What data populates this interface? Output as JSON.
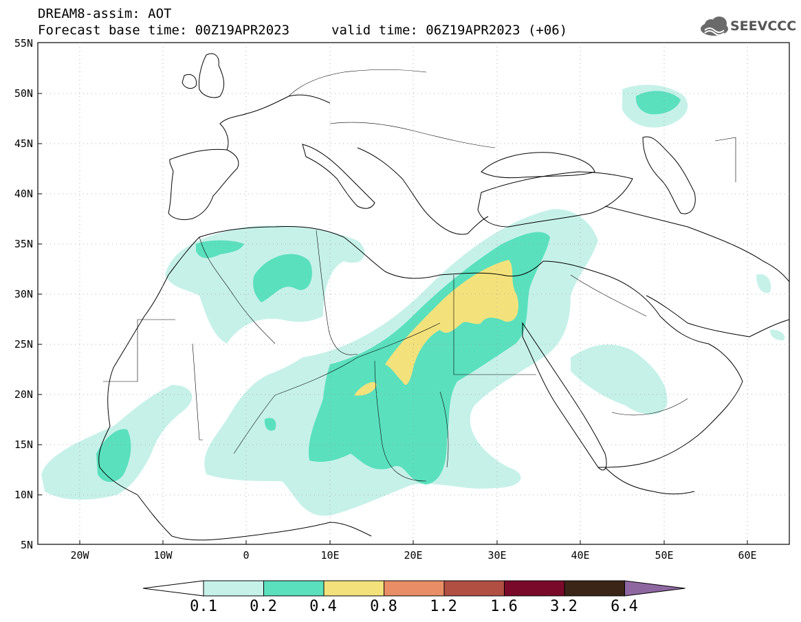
{
  "header": {
    "title_line1": "DREAM8-assim: AOT",
    "title_line2": "Forecast base time: 00Z19APR2023",
    "valid_time": "valid time: 06Z19APR2023 (+06)",
    "logo_text": "SEEVCCC",
    "logo_icon": "cloud-logo-icon"
  },
  "axes": {
    "lat_labels": [
      "55N",
      "50N",
      "45N",
      "40N",
      "35N",
      "30N",
      "25N",
      "20N",
      "15N",
      "10N",
      "5N"
    ],
    "lon_labels": [
      "20W",
      "10W",
      "0",
      "10E",
      "20E",
      "30E",
      "40E",
      "50E",
      "60E"
    ],
    "lat_range": [
      5,
      55
    ],
    "lon_range": [
      -25,
      65
    ]
  },
  "colorbar": {
    "levels": [
      "0.1",
      "0.2",
      "0.4",
      "0.8",
      "1.2",
      "1.6",
      "3.2",
      "6.4"
    ],
    "colors": [
      "#c6f1e9",
      "#5ae0bd",
      "#f3e27c",
      "#e98d66",
      "#b04f42",
      "#7a0a2a",
      "#3b2516",
      "#8e67a0"
    ],
    "under_color": "#ffffff"
  }
}
